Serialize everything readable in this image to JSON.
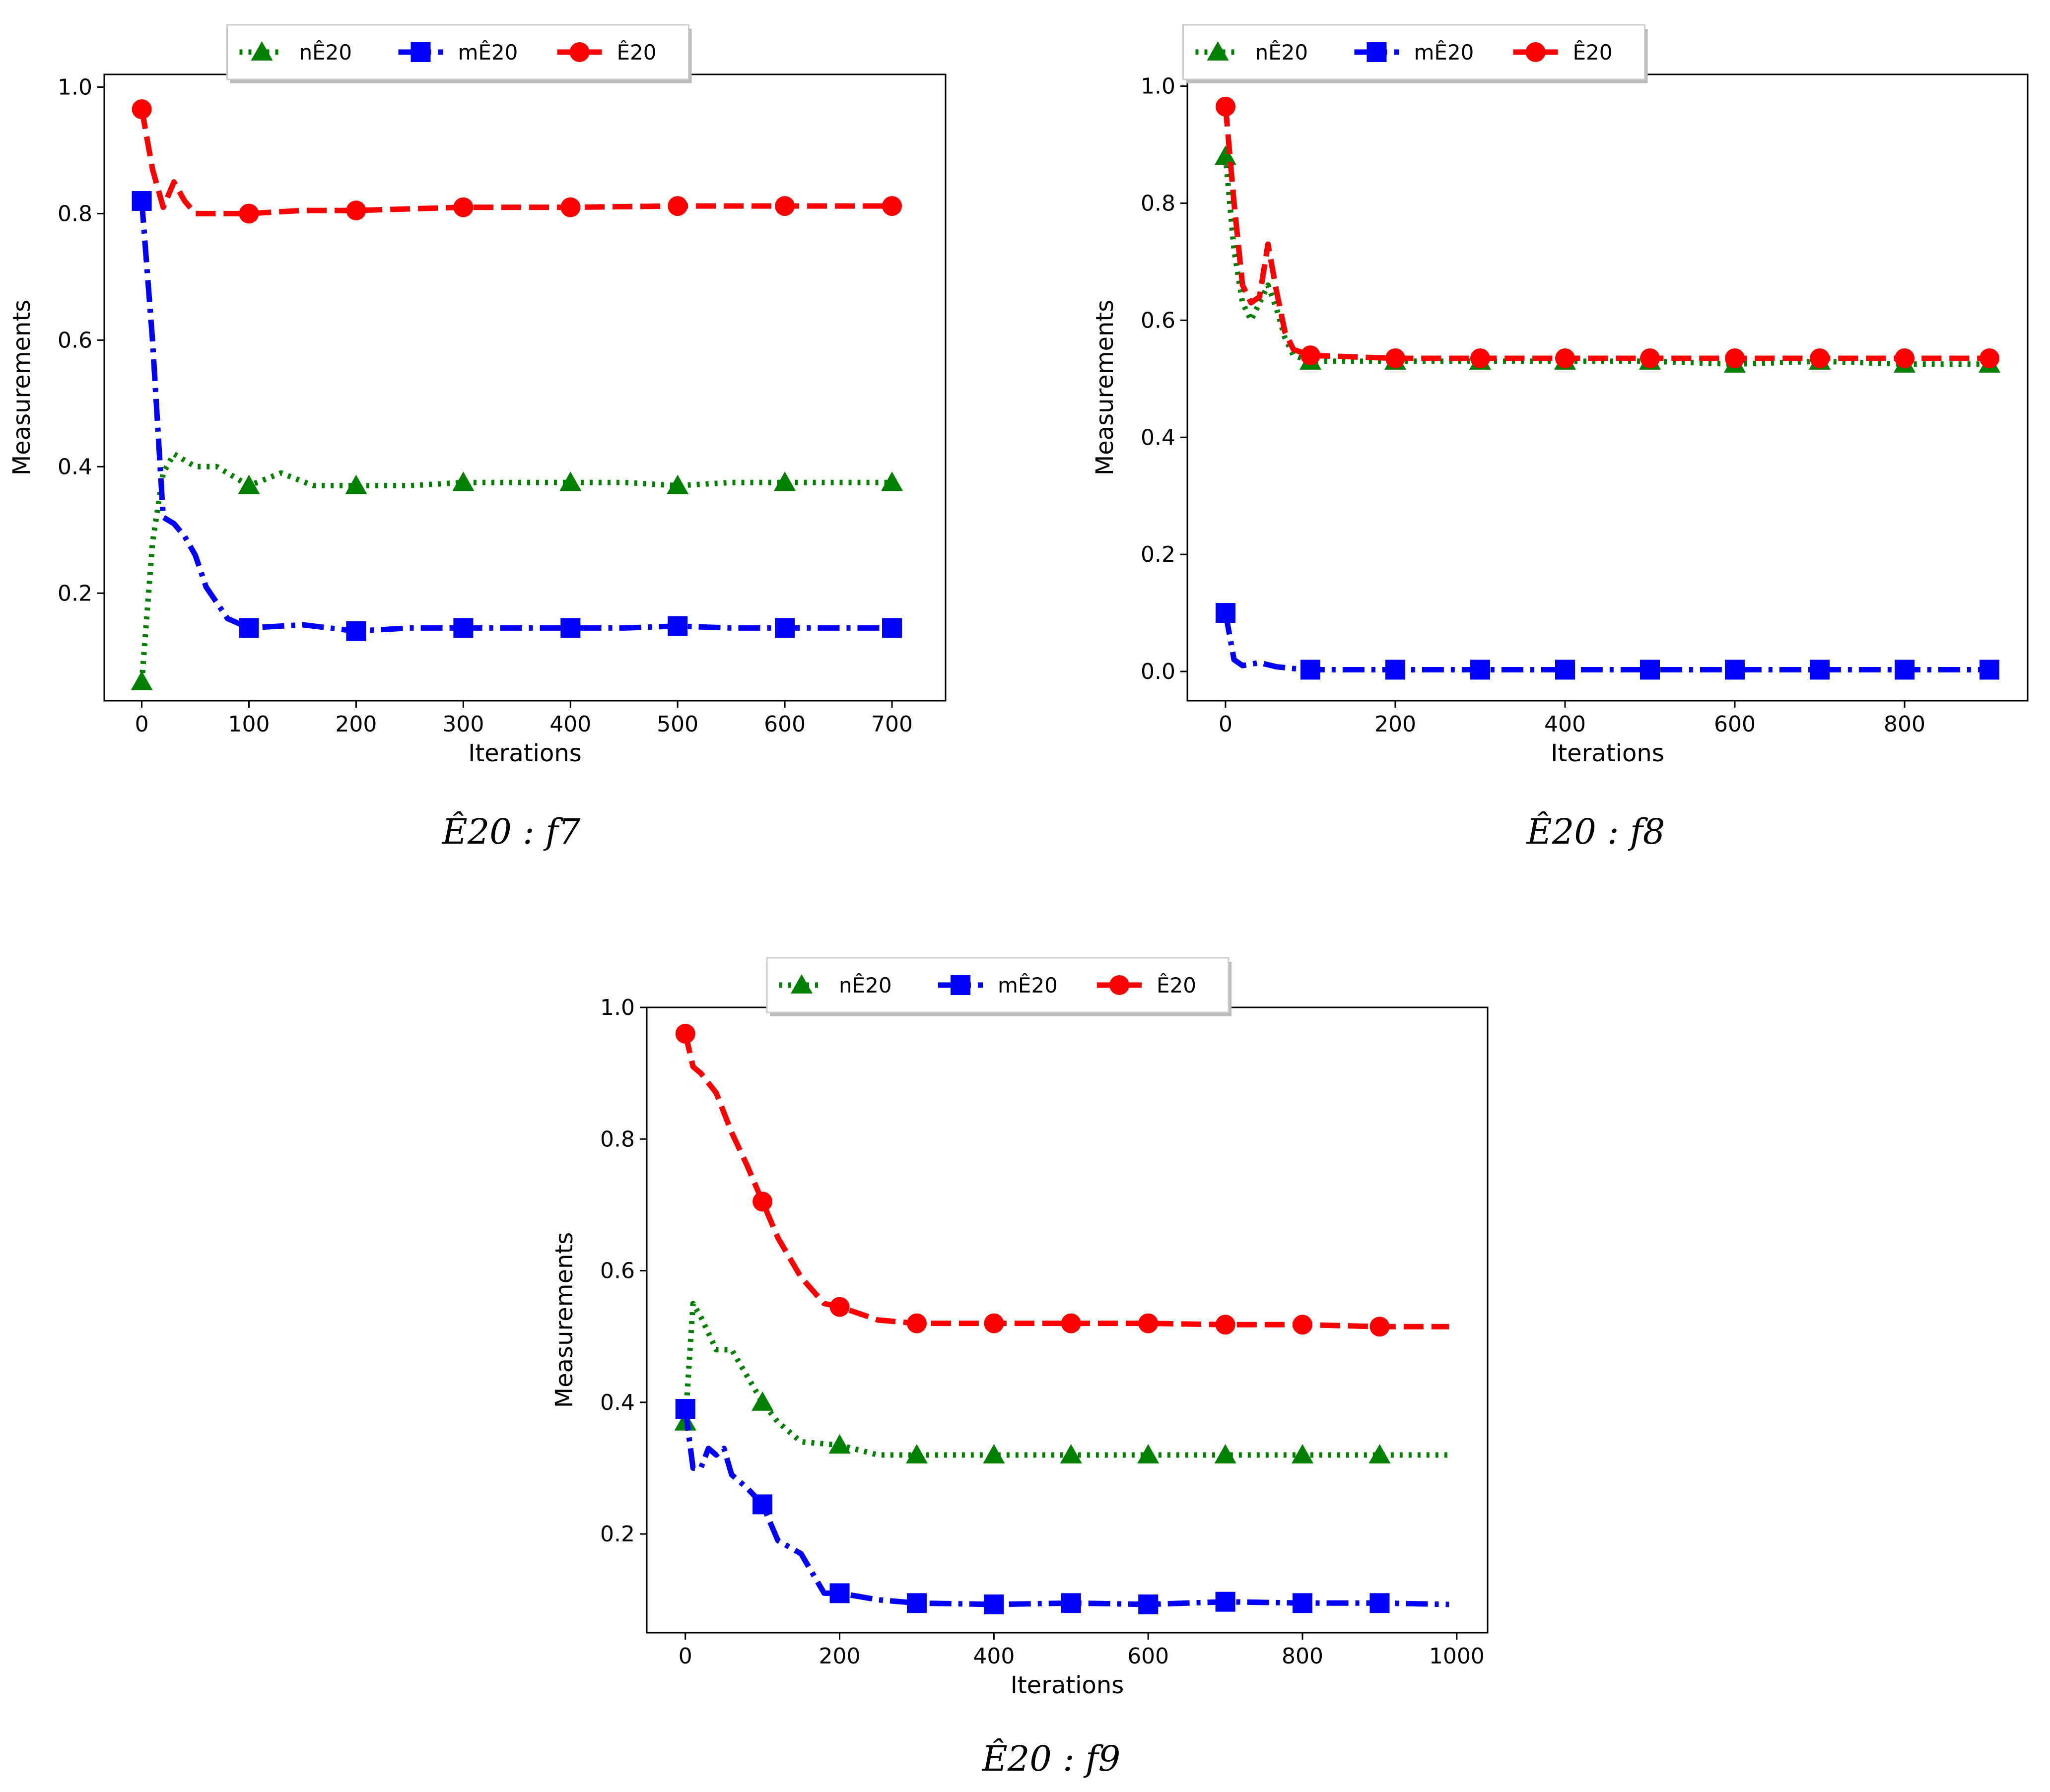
{
  "chart_data": [
    {
      "type": "line",
      "caption": "Ê20 : f7",
      "xlabel": "Iterations",
      "ylabel": "Measurements",
      "xlim": [
        -35,
        750
      ],
      "ylim": [
        0.03,
        1.02
      ],
      "xticks": [
        0,
        100,
        200,
        300,
        400,
        500,
        600,
        700
      ],
      "yticks": [
        0.2,
        0.4,
        0.6,
        0.8,
        1.0
      ],
      "legend": "top-center",
      "series": [
        {
          "name": "nÊ20",
          "color": "#008000",
          "style": "dotted",
          "marker": "triangle",
          "x": [
            0,
            10,
            20,
            30,
            50,
            70,
            100,
            130,
            160,
            200,
            250,
            300,
            350,
            400,
            450,
            500,
            550,
            600,
            650,
            700
          ],
          "y": [
            0.06,
            0.28,
            0.39,
            0.42,
            0.4,
            0.4,
            0.37,
            0.39,
            0.37,
            0.37,
            0.37,
            0.375,
            0.375,
            0.375,
            0.375,
            0.37,
            0.375,
            0.375,
            0.375,
            0.375
          ]
        },
        {
          "name": "mÊ20",
          "color": "#0000ff",
          "style": "dashdot",
          "marker": "square",
          "x": [
            0,
            10,
            20,
            30,
            40,
            50,
            60,
            80,
            100,
            150,
            200,
            250,
            300,
            350,
            400,
            450,
            500,
            550,
            600,
            650,
            700
          ],
          "y": [
            0.82,
            0.6,
            0.32,
            0.31,
            0.29,
            0.26,
            0.21,
            0.16,
            0.145,
            0.15,
            0.14,
            0.145,
            0.145,
            0.145,
            0.145,
            0.145,
            0.148,
            0.145,
            0.145,
            0.145,
            0.145
          ]
        },
        {
          "name": "Ê20",
          "color": "#ff0000",
          "style": "dashed",
          "marker": "circle",
          "x": [
            0,
            10,
            20,
            30,
            40,
            50,
            70,
            100,
            150,
            200,
            300,
            400,
            500,
            600,
            700
          ],
          "y": [
            0.965,
            0.87,
            0.81,
            0.85,
            0.82,
            0.8,
            0.8,
            0.8,
            0.805,
            0.805,
            0.81,
            0.81,
            0.812,
            0.812,
            0.812
          ]
        }
      ],
      "marker_x": [
        0,
        100,
        200,
        300,
        400,
        500,
        600,
        700
      ]
    },
    {
      "type": "line",
      "caption": "Ê20 : f8",
      "xlabel": "Iterations",
      "ylabel": "Measurements",
      "xlim": [
        -45,
        945
      ],
      "ylim": [
        -0.05,
        1.02
      ],
      "xticks": [
        0,
        200,
        400,
        600,
        800
      ],
      "yticks": [
        0.0,
        0.2,
        0.4,
        0.6,
        0.8,
        1.0
      ],
      "legend": "top-center",
      "series": [
        {
          "name": "nÊ20",
          "color": "#008000",
          "style": "dotted",
          "marker": "triangle",
          "x": [
            0,
            10,
            20,
            30,
            40,
            50,
            60,
            70,
            80,
            100,
            200,
            300,
            400,
            500,
            600,
            700,
            800,
            900
          ],
          "y": [
            0.88,
            0.72,
            0.63,
            0.6,
            0.63,
            0.66,
            0.62,
            0.57,
            0.54,
            0.53,
            0.53,
            0.53,
            0.53,
            0.53,
            0.525,
            0.53,
            0.525,
            0.525
          ]
        },
        {
          "name": "mÊ20",
          "color": "#0000ff",
          "style": "dashdot",
          "marker": "square",
          "x": [
            0,
            10,
            20,
            40,
            60,
            80,
            100,
            200,
            300,
            400,
            500,
            600,
            700,
            800,
            900
          ],
          "y": [
            0.1,
            0.02,
            0.01,
            0.015,
            0.008,
            0.005,
            0.003,
            0.003,
            0.003,
            0.003,
            0.003,
            0.003,
            0.003,
            0.003,
            0.003
          ]
        },
        {
          "name": "Ê20",
          "color": "#ff0000",
          "style": "dashed",
          "marker": "circle",
          "x": [
            0,
            10,
            20,
            30,
            40,
            50,
            60,
            70,
            80,
            100,
            200,
            300,
            400,
            500,
            600,
            700,
            800,
            900
          ],
          "y": [
            0.965,
            0.8,
            0.66,
            0.63,
            0.64,
            0.73,
            0.65,
            0.58,
            0.55,
            0.54,
            0.535,
            0.535,
            0.535,
            0.535,
            0.535,
            0.535,
            0.535,
            0.535
          ]
        }
      ],
      "marker_x": [
        0,
        100,
        200,
        300,
        400,
        500,
        600,
        700,
        800,
        900
      ]
    },
    {
      "type": "line",
      "caption": "Ê20 : f9",
      "xlabel": "Iterations",
      "ylabel": "Measurements",
      "xlim": [
        -50,
        1040
      ],
      "ylim": [
        0.05,
        1.0
      ],
      "xticks": [
        0,
        200,
        400,
        600,
        800,
        1000
      ],
      "yticks": [
        0.2,
        0.4,
        0.6,
        0.8,
        1.0
      ],
      "legend": "top-center",
      "series": [
        {
          "name": "nÊ20",
          "color": "#008000",
          "style": "dotted",
          "marker": "triangle",
          "x": [
            0,
            10,
            20,
            40,
            60,
            80,
            100,
            120,
            150,
            200,
            250,
            300,
            400,
            500,
            600,
            700,
            800,
            900,
            990
          ],
          "y": [
            0.37,
            0.55,
            0.53,
            0.48,
            0.48,
            0.44,
            0.4,
            0.37,
            0.34,
            0.335,
            0.32,
            0.32,
            0.32,
            0.32,
            0.32,
            0.32,
            0.32,
            0.32,
            0.32
          ]
        },
        {
          "name": "mÊ20",
          "color": "#0000ff",
          "style": "dashdot",
          "marker": "square",
          "x": [
            0,
            10,
            20,
            30,
            40,
            50,
            60,
            80,
            100,
            120,
            150,
            180,
            200,
            250,
            300,
            400,
            500,
            600,
            700,
            800,
            900,
            990
          ],
          "y": [
            0.39,
            0.3,
            0.3,
            0.33,
            0.32,
            0.33,
            0.29,
            0.27,
            0.245,
            0.19,
            0.17,
            0.11,
            0.11,
            0.1,
            0.095,
            0.093,
            0.095,
            0.093,
            0.097,
            0.095,
            0.095,
            0.093
          ]
        },
        {
          "name": "Ê20",
          "color": "#ff0000",
          "style": "dashed",
          "marker": "circle",
          "x": [
            0,
            10,
            20,
            40,
            60,
            80,
            100,
            120,
            150,
            180,
            200,
            250,
            300,
            400,
            500,
            600,
            700,
            800,
            900,
            990
          ],
          "y": [
            0.96,
            0.91,
            0.9,
            0.87,
            0.81,
            0.76,
            0.705,
            0.65,
            0.59,
            0.55,
            0.545,
            0.525,
            0.52,
            0.52,
            0.52,
            0.52,
            0.518,
            0.518,
            0.515,
            0.515
          ]
        }
      ],
      "marker_x": [
        0,
        100,
        200,
        300,
        400,
        500,
        600,
        700,
        800,
        900
      ]
    }
  ]
}
